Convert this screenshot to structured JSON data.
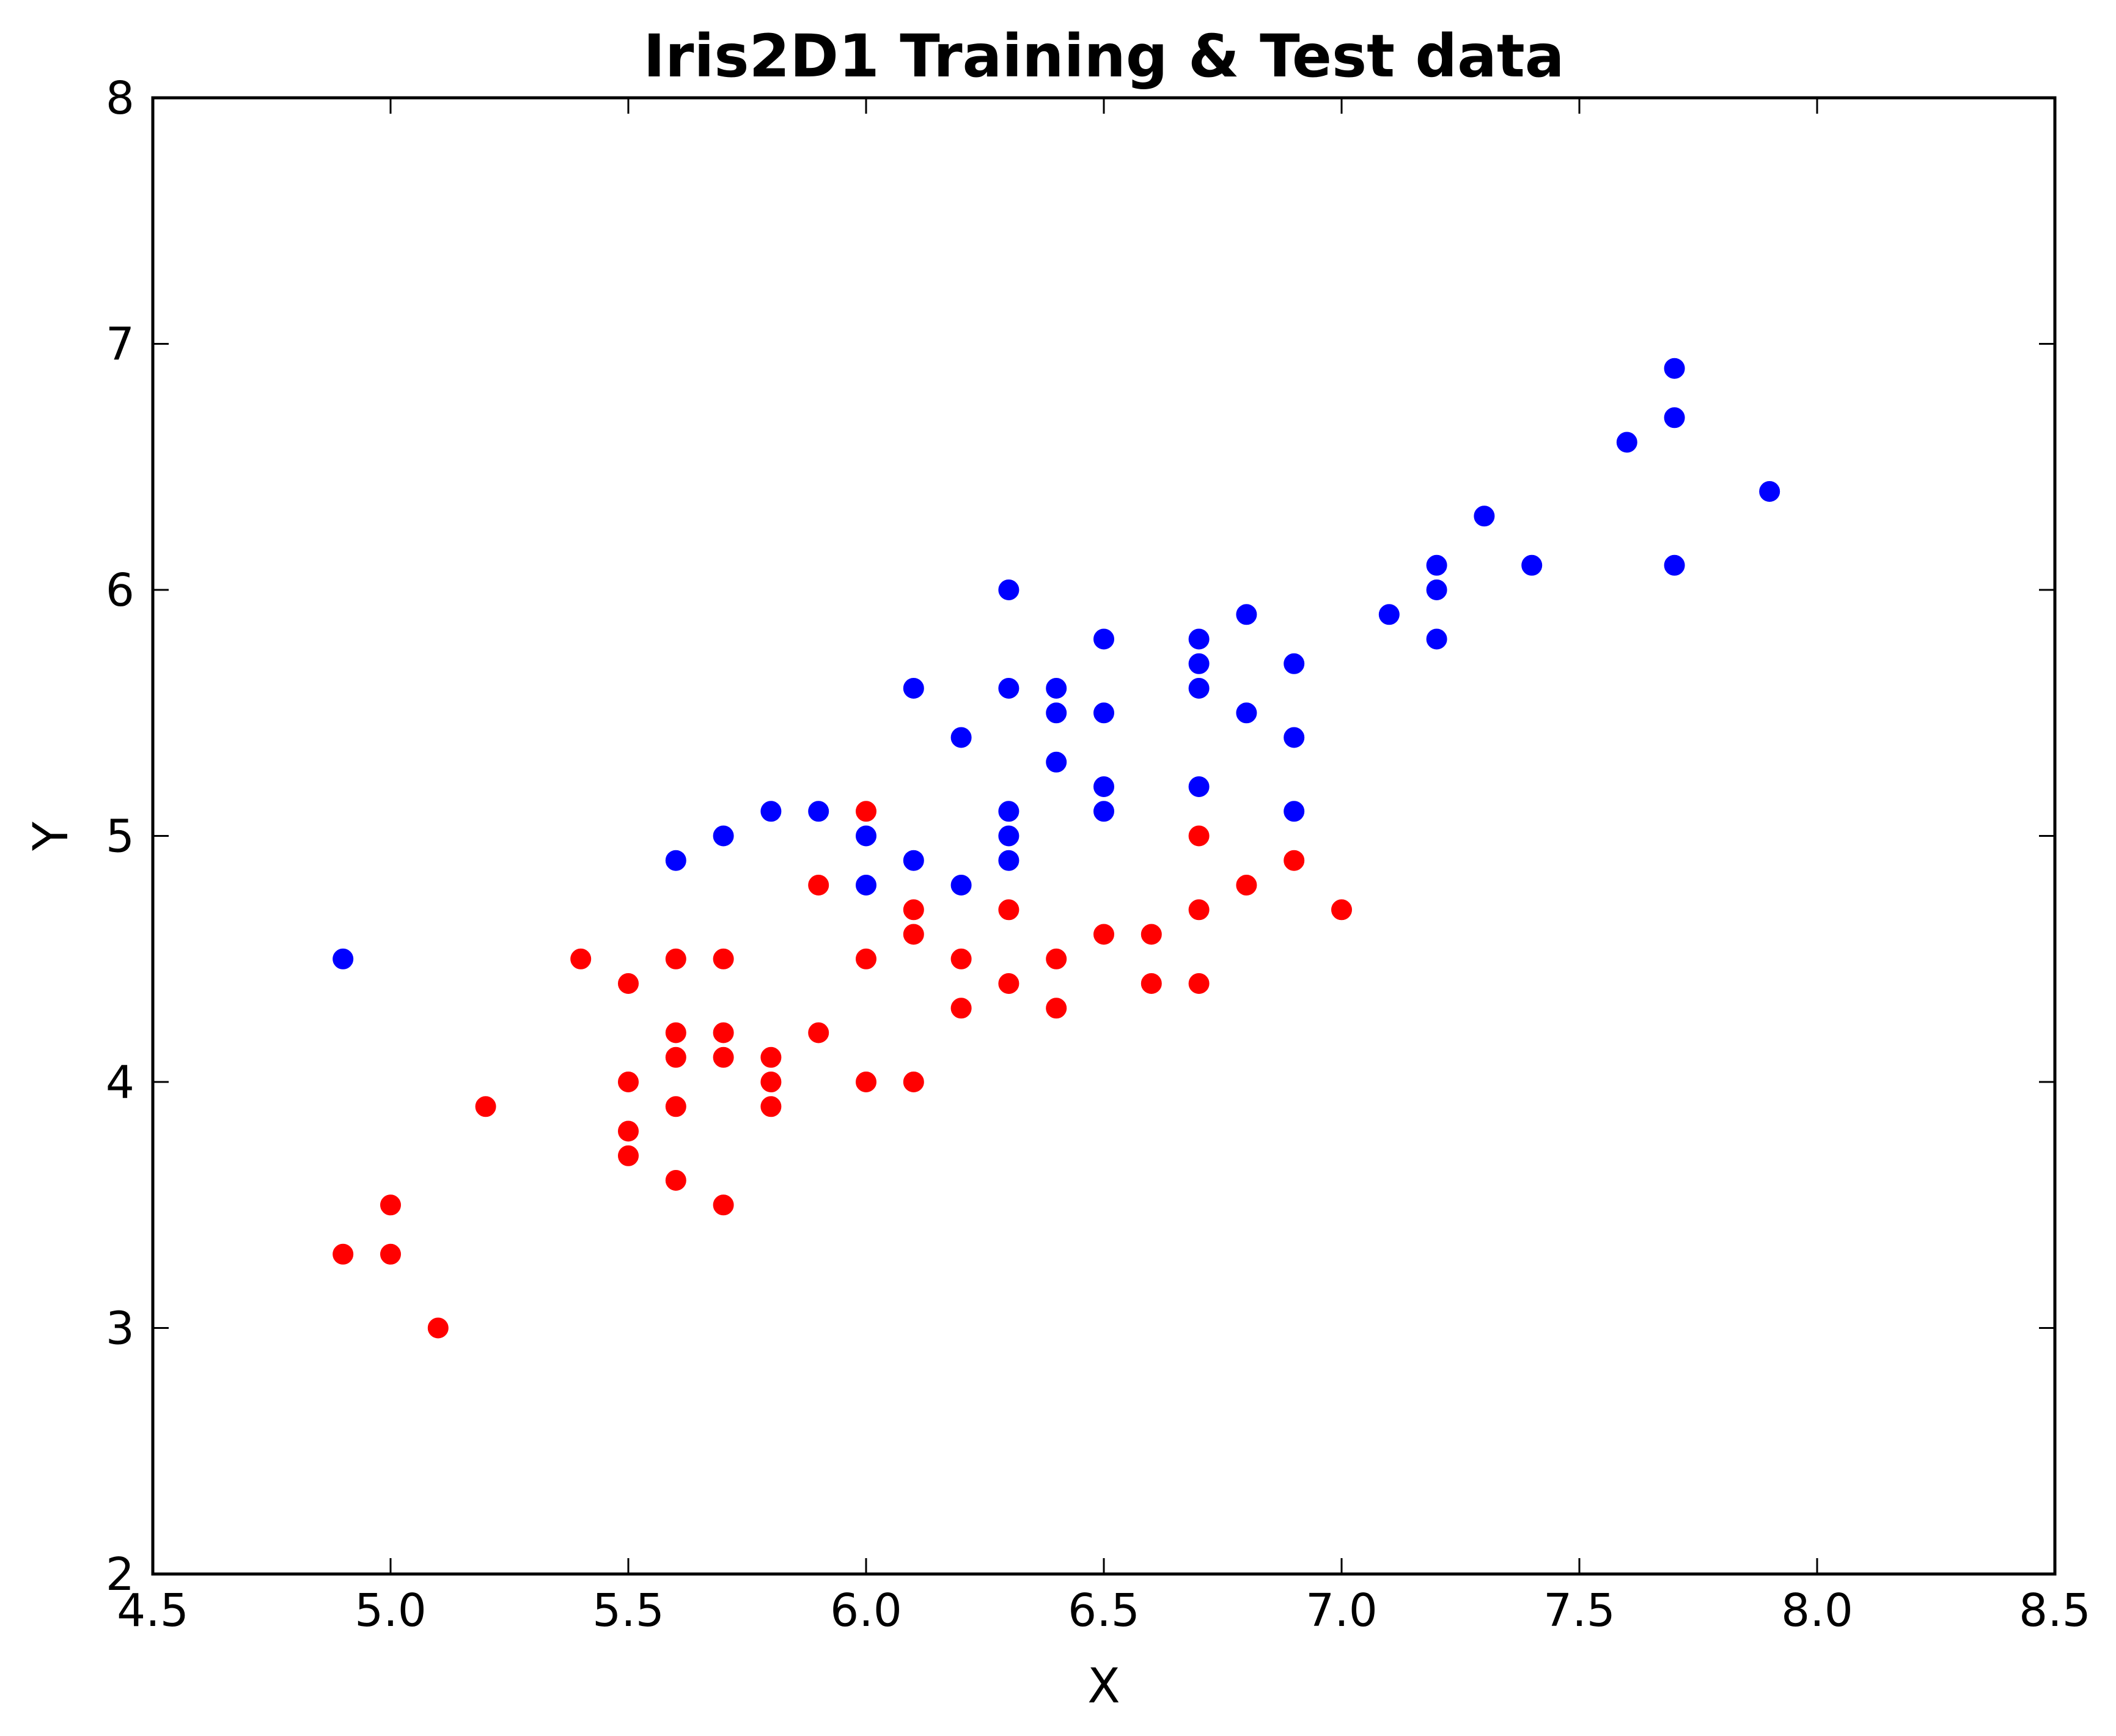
{
  "chart_data": {
    "type": "scatter",
    "title": "Iris2D1 Training & Test data",
    "xlabel": "X",
    "ylabel": "Y",
    "xlim": [
      4.5,
      8.5
    ],
    "ylim": [
      2,
      8
    ],
    "xticks": [
      4.5,
      5.0,
      5.5,
      6.0,
      6.5,
      7.0,
      7.5,
      8.0,
      8.5
    ],
    "xtick_labels": [
      "4.5",
      "5.0",
      "5.5",
      "6.0",
      "6.5",
      "7.0",
      "7.5",
      "8.0",
      "8.5"
    ],
    "yticks": [
      2,
      3,
      4,
      5,
      6,
      7,
      8
    ],
    "ytick_labels": [
      "2",
      "3",
      "4",
      "5",
      "6",
      "7",
      "8"
    ],
    "grid": false,
    "legend": null,
    "series": [
      {
        "color": "#ff0000",
        "points": [
          [
            4.9,
            3.3
          ],
          [
            5.0,
            3.5
          ],
          [
            5.0,
            3.3
          ],
          [
            5.1,
            3.0
          ],
          [
            5.2,
            3.9
          ],
          [
            5.4,
            4.5
          ],
          [
            5.5,
            4.4
          ],
          [
            5.5,
            4.0
          ],
          [
            5.5,
            3.8
          ],
          [
            5.5,
            3.7
          ],
          [
            5.6,
            4.5
          ],
          [
            5.6,
            4.2
          ],
          [
            5.6,
            4.1
          ],
          [
            5.6,
            3.9
          ],
          [
            5.6,
            3.6
          ],
          [
            5.7,
            4.5
          ],
          [
            5.7,
            4.2
          ],
          [
            5.7,
            4.1
          ],
          [
            5.7,
            3.5
          ],
          [
            5.8,
            4.1
          ],
          [
            5.8,
            4.0
          ],
          [
            5.8,
            3.9
          ],
          [
            5.9,
            4.8
          ],
          [
            5.9,
            4.2
          ],
          [
            6.0,
            5.1
          ],
          [
            6.0,
            4.5
          ],
          [
            6.0,
            4.0
          ],
          [
            6.1,
            4.7
          ],
          [
            6.1,
            4.6
          ],
          [
            6.1,
            4.0
          ],
          [
            6.2,
            4.5
          ],
          [
            6.2,
            4.3
          ],
          [
            6.3,
            4.7
          ],
          [
            6.3,
            4.4
          ],
          [
            6.4,
            4.5
          ],
          [
            6.4,
            4.3
          ],
          [
            6.5,
            4.6
          ],
          [
            6.6,
            4.6
          ],
          [
            6.6,
            4.4
          ],
          [
            6.7,
            5.0
          ],
          [
            6.7,
            4.7
          ],
          [
            6.7,
            4.4
          ],
          [
            6.8,
            4.8
          ],
          [
            6.9,
            4.9
          ],
          [
            7.0,
            4.7
          ]
        ]
      },
      {
        "color": "#0000ff",
        "points": [
          [
            4.9,
            4.5
          ],
          [
            5.6,
            4.9
          ],
          [
            5.7,
            5.0
          ],
          [
            5.8,
            5.1
          ],
          [
            5.9,
            5.1
          ],
          [
            6.0,
            5.0
          ],
          [
            6.0,
            4.8
          ],
          [
            6.1,
            5.6
          ],
          [
            6.1,
            4.9
          ],
          [
            6.2,
            5.4
          ],
          [
            6.2,
            4.8
          ],
          [
            6.3,
            6.0
          ],
          [
            6.3,
            5.6
          ],
          [
            6.3,
            5.1
          ],
          [
            6.3,
            5.0
          ],
          [
            6.3,
            4.9
          ],
          [
            6.4,
            5.6
          ],
          [
            6.4,
            5.5
          ],
          [
            6.4,
            5.3
          ],
          [
            6.5,
            5.8
          ],
          [
            6.5,
            5.5
          ],
          [
            6.5,
            5.2
          ],
          [
            6.5,
            5.1
          ],
          [
            6.7,
            5.8
          ],
          [
            6.7,
            5.7
          ],
          [
            6.7,
            5.6
          ],
          [
            6.7,
            5.2
          ],
          [
            6.8,
            5.9
          ],
          [
            6.8,
            5.5
          ],
          [
            6.9,
            5.7
          ],
          [
            6.9,
            5.4
          ],
          [
            6.9,
            5.1
          ],
          [
            7.1,
            5.9
          ],
          [
            7.2,
            6.1
          ],
          [
            7.2,
            6.0
          ],
          [
            7.2,
            5.8
          ],
          [
            7.3,
            6.3
          ],
          [
            7.4,
            6.1
          ],
          [
            7.6,
            6.6
          ],
          [
            7.7,
            6.9
          ],
          [
            7.7,
            6.7
          ],
          [
            7.7,
            6.1
          ],
          [
            7.9,
            6.4
          ]
        ]
      }
    ]
  }
}
